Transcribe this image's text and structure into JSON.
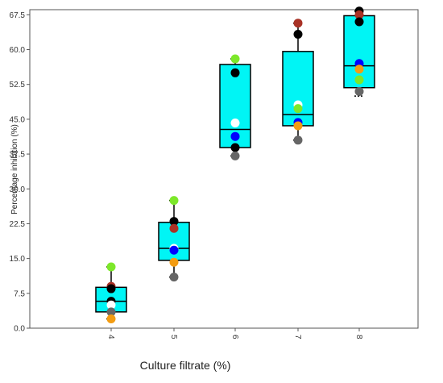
{
  "chart_data": {
    "type": "box",
    "xlabel": "Culture filtrate (%)",
    "ylabel": "Percentage inhibition (%)",
    "ylim": [
      0,
      68.6
    ],
    "yticks": [
      "0.0",
      "7.5",
      "15.0",
      "22.5",
      "30.0",
      "37.5",
      "45.0",
      "52.5",
      "60.0",
      "67.5"
    ],
    "categories": [
      "4",
      "5",
      "6",
      "7",
      "8"
    ],
    "boxes": [
      {
        "category": "4",
        "min": 2.0,
        "q1": 3.5,
        "median": 5.8,
        "q3": 8.8,
        "max": 13.2
      },
      {
        "category": "5",
        "min": 11.0,
        "q1": 14.6,
        "median": 17.2,
        "q3": 22.8,
        "max": 27.5
      },
      {
        "category": "6",
        "min": 37.1,
        "q1": 38.9,
        "median": 42.8,
        "q3": 56.8,
        "max": 58.0
      },
      {
        "category": "7",
        "min": 40.5,
        "q1": 43.6,
        "median": 46.0,
        "q3": 59.6,
        "max": 65.7
      },
      {
        "category": "8",
        "min": 50.0,
        "q1": 51.8,
        "median": 56.5,
        "q3": 67.3,
        "max": 68.3
      }
    ],
    "points": [
      {
        "category": "4",
        "values": [
          13.2,
          9.0,
          8.5,
          5.8,
          5.0,
          3.5,
          2.0
        ],
        "colors": [
          "#7de82a",
          "#a93226",
          "#000000",
          "#000000",
          "#ffffff",
          "#666666",
          "#f39c12"
        ]
      },
      {
        "category": "5",
        "values": [
          27.5,
          23.0,
          21.5,
          17.2,
          16.8,
          14.2,
          11.0
        ],
        "colors": [
          "#7de82a",
          "#000000",
          "#a93226",
          "#ffffff",
          "#0000ff",
          "#f39c12",
          "#666666"
        ]
      },
      {
        "category": "6",
        "values": [
          58.0,
          55.0,
          44.2,
          41.3,
          38.9,
          37.1
        ],
        "colors": [
          "#7de82a",
          "#000000",
          "#ffffff",
          "#0000ff",
          "#000000",
          "#666666"
        ]
      },
      {
        "category": "7",
        "values": [
          65.7,
          63.3,
          48.1,
          47.3,
          44.3,
          43.6,
          40.5
        ],
        "colors": [
          "#a93226",
          "#000000",
          "#ffffff",
          "#7de82a",
          "#0000ff",
          "#f39c12",
          "#666666"
        ]
      },
      {
        "category": "8",
        "values": [
          68.3,
          67.5,
          66.0,
          57.0,
          55.8,
          53.5,
          51.0
        ],
        "colors": [
          "#000000",
          "#a93226",
          "#000000",
          "#0000ff",
          "#f39c12",
          "#7de82a",
          "#666666"
        ]
      }
    ],
    "colors": {
      "box_fill": "#00f5f5",
      "box_stroke": "#000000",
      "frame": "#555555"
    },
    "grid": false,
    "legend": "none"
  }
}
